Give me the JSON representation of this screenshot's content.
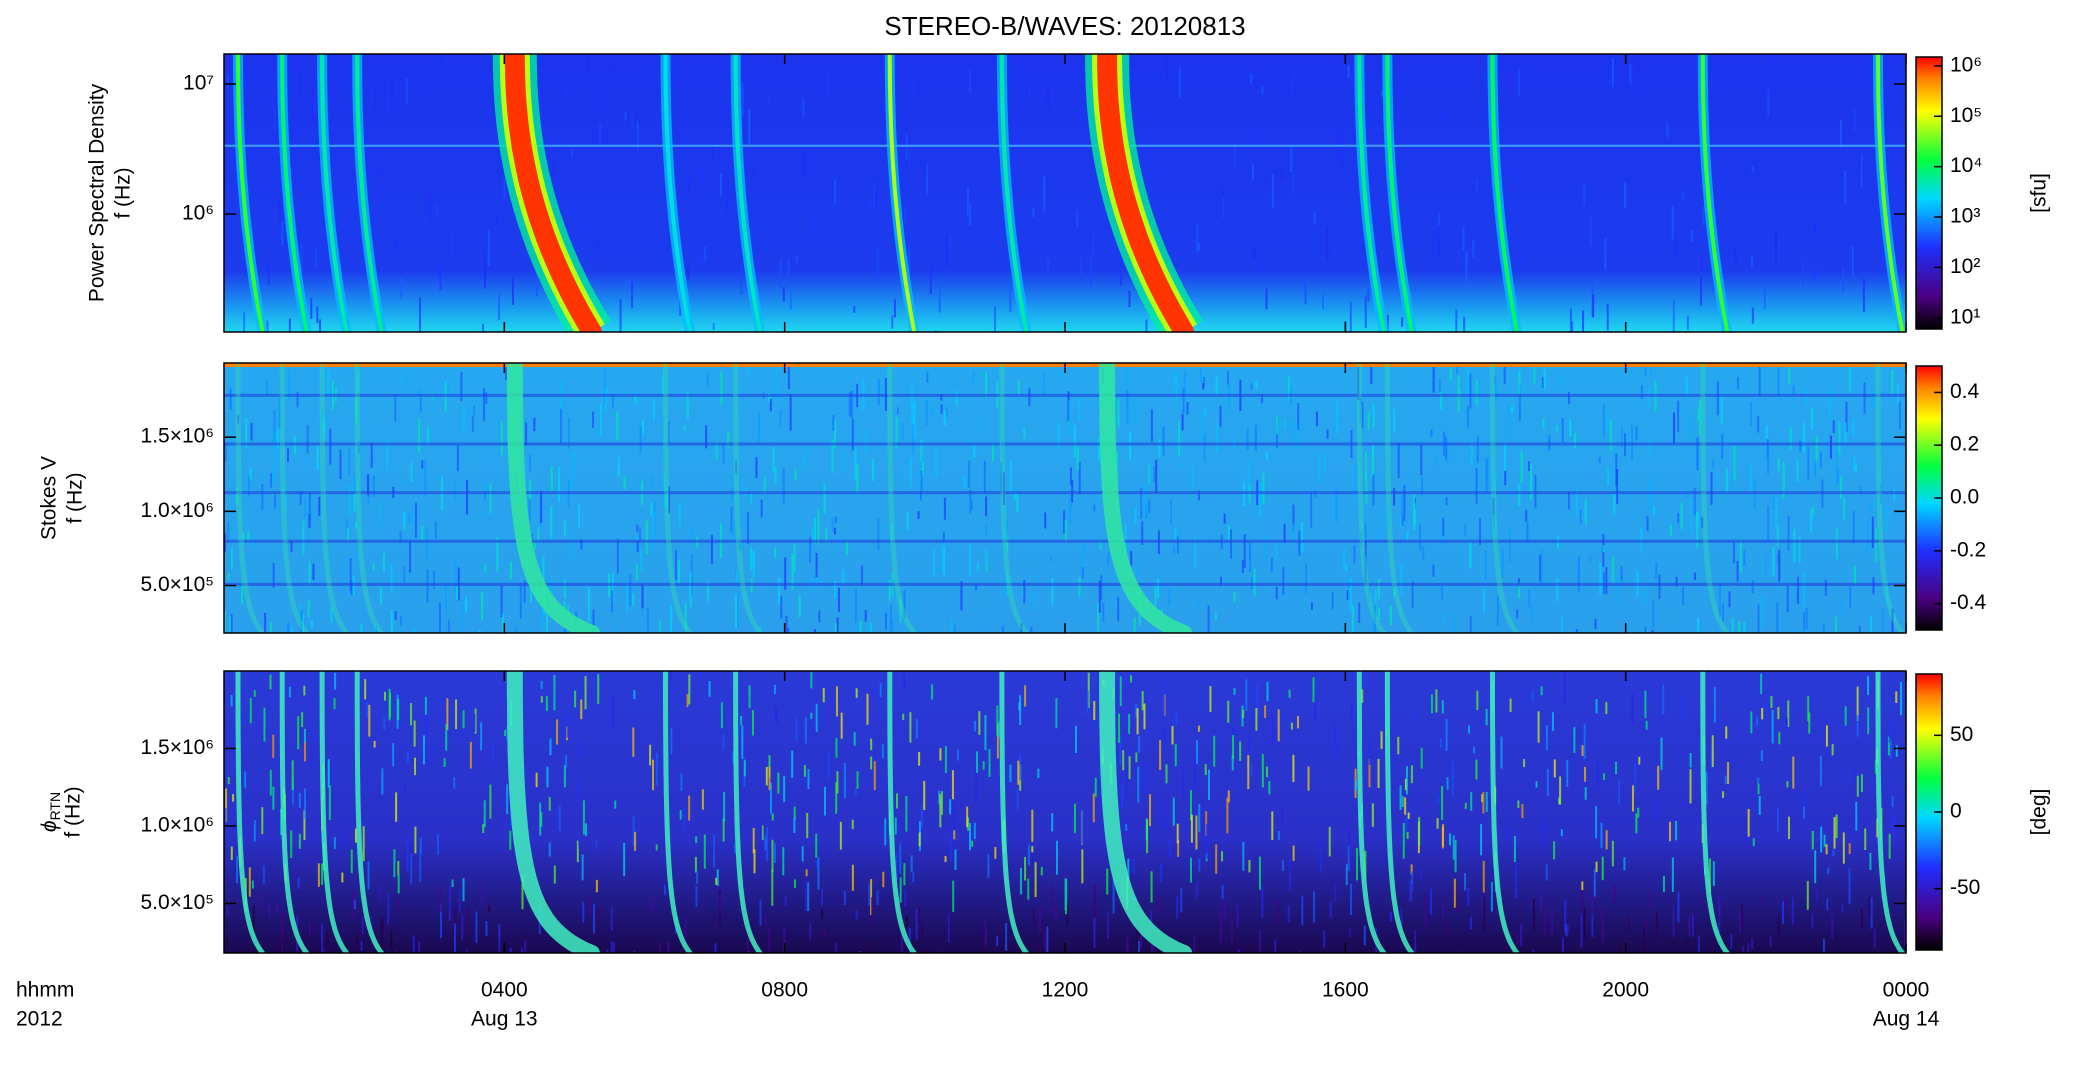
{
  "title": "STEREO-B/WAVES: 20120813",
  "x_axis": {
    "xlim": [
      0,
      24
    ],
    "xticks": [
      {
        "value": 4,
        "label": "0400"
      },
      {
        "value": 8,
        "label": "0800"
      },
      {
        "value": 12,
        "label": "1200"
      },
      {
        "value": 16,
        "label": "1600"
      },
      {
        "value": 20,
        "label": "2000"
      },
      {
        "value": 24,
        "label": "0000"
      }
    ],
    "xtick_sublabels": [
      "Aug 13",
      null,
      null,
      null,
      null,
      "Aug 14"
    ],
    "label": "hhmm",
    "label2": "2012"
  },
  "chart_data": [
    {
      "type": "heatmap",
      "ylabel": "Power Spectral Density",
      "ylabel2": "f (Hz)",
      "ylog": true,
      "ylim": [
        124000,
        17000000
      ],
      "yticks": [
        {
          "value": 1000000,
          "label": "10⁶"
        },
        {
          "value": 10000000,
          "label": "10⁷"
        }
      ],
      "clog": true,
      "clim": [
        6,
        1500000
      ],
      "cticks": [
        {
          "value": 10,
          "label": "10¹"
        },
        {
          "value": 100,
          "label": "10²"
        },
        {
          "value": 1000,
          "label": "10³"
        },
        {
          "value": 10000,
          "label": "10⁴"
        },
        {
          "value": 100000,
          "label": "10⁵"
        },
        {
          "value": 1000000,
          "label": "10⁶"
        }
      ],
      "clabel": "[sfu]",
      "bursts": {
        "t": [
          0.2,
          0.83,
          1.4,
          1.9,
          4.15,
          6.3,
          7.3,
          9.5,
          11.1,
          12.6,
          16.2,
          16.6,
          18.1,
          21.1,
          23.6
        ],
        "peak": [
          20000,
          8000,
          5000,
          6000,
          1000000,
          3000,
          4000,
          60000,
          5000,
          1000000,
          6000,
          8000,
          10000,
          20000,
          30000
        ]
      }
    },
    {
      "type": "heatmap",
      "ylabel": "Stokes V",
      "ylabel2": "f (Hz)",
      "ylog": false,
      "ylim": [
        180000,
        2000000
      ],
      "yticks": [
        {
          "value": 500000,
          "label": "5.0×10⁵"
        },
        {
          "value": 1000000,
          "label": "1.0×10⁶"
        },
        {
          "value": 1500000,
          "label": "1.5×10⁶"
        }
      ],
      "clog": false,
      "clim": [
        -0.5,
        0.5
      ],
      "cticks": [
        -0.4,
        -0.2,
        {
          "value": 0,
          "label": "0.0"
        },
        0.2,
        0.4
      ]
    },
    {
      "type": "heatmap",
      "ylabel": "ϕ",
      "ylabel_sub": "RTN",
      "ylabel2": "f (Hz)",
      "ylog": false,
      "ylim": [
        180000,
        2000000
      ],
      "yticks": [
        {
          "value": 500000,
          "label": "5.0×10⁵"
        },
        {
          "value": 1000000,
          "label": "1.0×10⁶"
        },
        {
          "value": 1500000,
          "label": "1.5×10⁶"
        }
      ],
      "clog": false,
      "clim": [
        -90,
        90
      ],
      "cticks": [
        -50,
        0,
        50
      ],
      "clabel": "[deg]"
    }
  ]
}
